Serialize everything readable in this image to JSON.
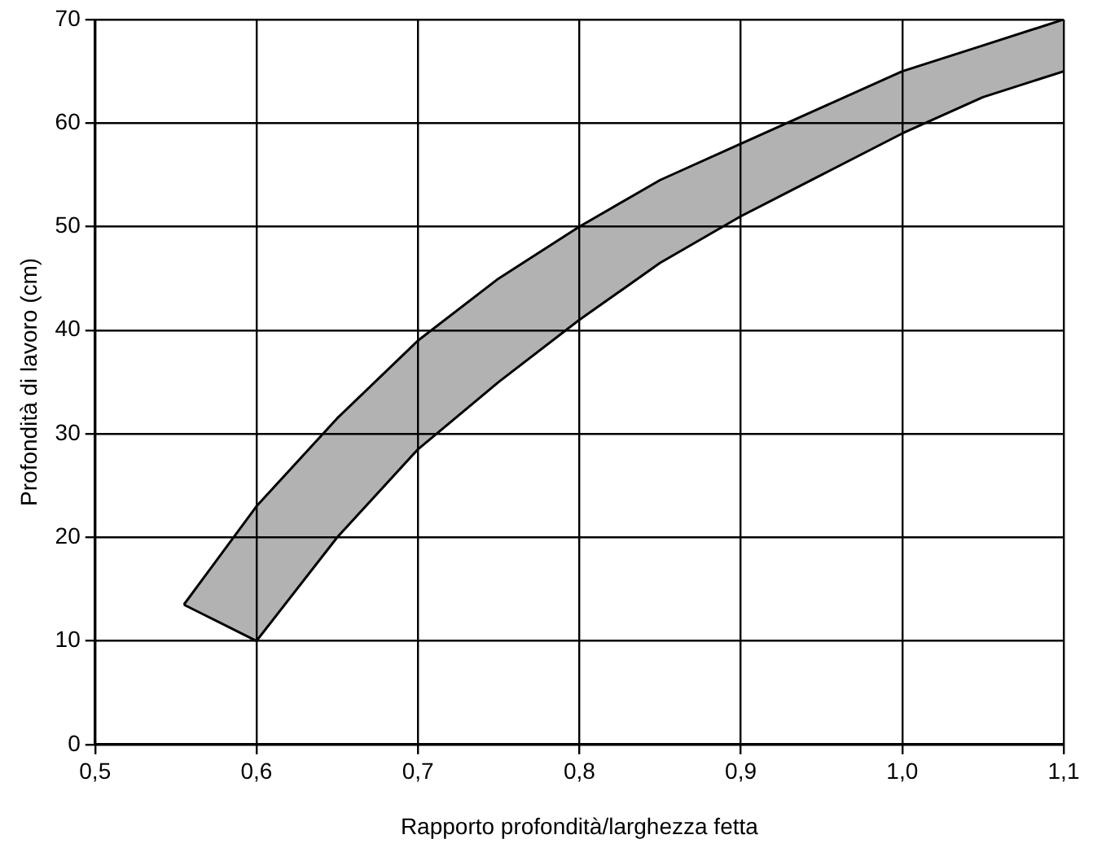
{
  "chart_data": {
    "type": "area",
    "xlabel": "Rapporto profondità/larghezza fetta",
    "ylabel": "Profondità di lavoro (cm)",
    "x": [
      0.555,
      0.6,
      0.65,
      0.7,
      0.75,
      0.8,
      0.85,
      0.9,
      0.95,
      1.0,
      1.05,
      1.1
    ],
    "series": [
      {
        "type": "line",
        "color": "#000000",
        "values": [
          13.5,
          10,
          20,
          28.5,
          35,
          41,
          46.5,
          51,
          55,
          59,
          62.5,
          65
        ]
      },
      {
        "color": "#000000",
        "values": [
          13.5,
          23,
          31.5,
          39,
          45,
          50,
          54.5,
          58,
          61.5,
          65,
          67.5,
          70
        ]
      }
    ],
    "xlim": [
      0.5,
      1.1
    ],
    "ylim": [
      0,
      70
    ],
    "xticks": [
      {
        "value": 0.5,
        "label": "0,5"
      },
      {
        "value": 0.6,
        "label": "0,6"
      },
      {
        "value": 0.7,
        "label": "0,7"
      },
      {
        "value": 0.8,
        "label": "0,8"
      },
      {
        "value": 0.9,
        "label": "0,9"
      },
      {
        "value": 1.0,
        "label": "1,0"
      },
      {
        "value": 1.1,
        "label": "1,1"
      }
    ],
    "yticks": [
      0,
      10,
      20,
      30,
      40,
      50,
      60,
      70
    ],
    "grid": true,
    "legend": false
  }
}
